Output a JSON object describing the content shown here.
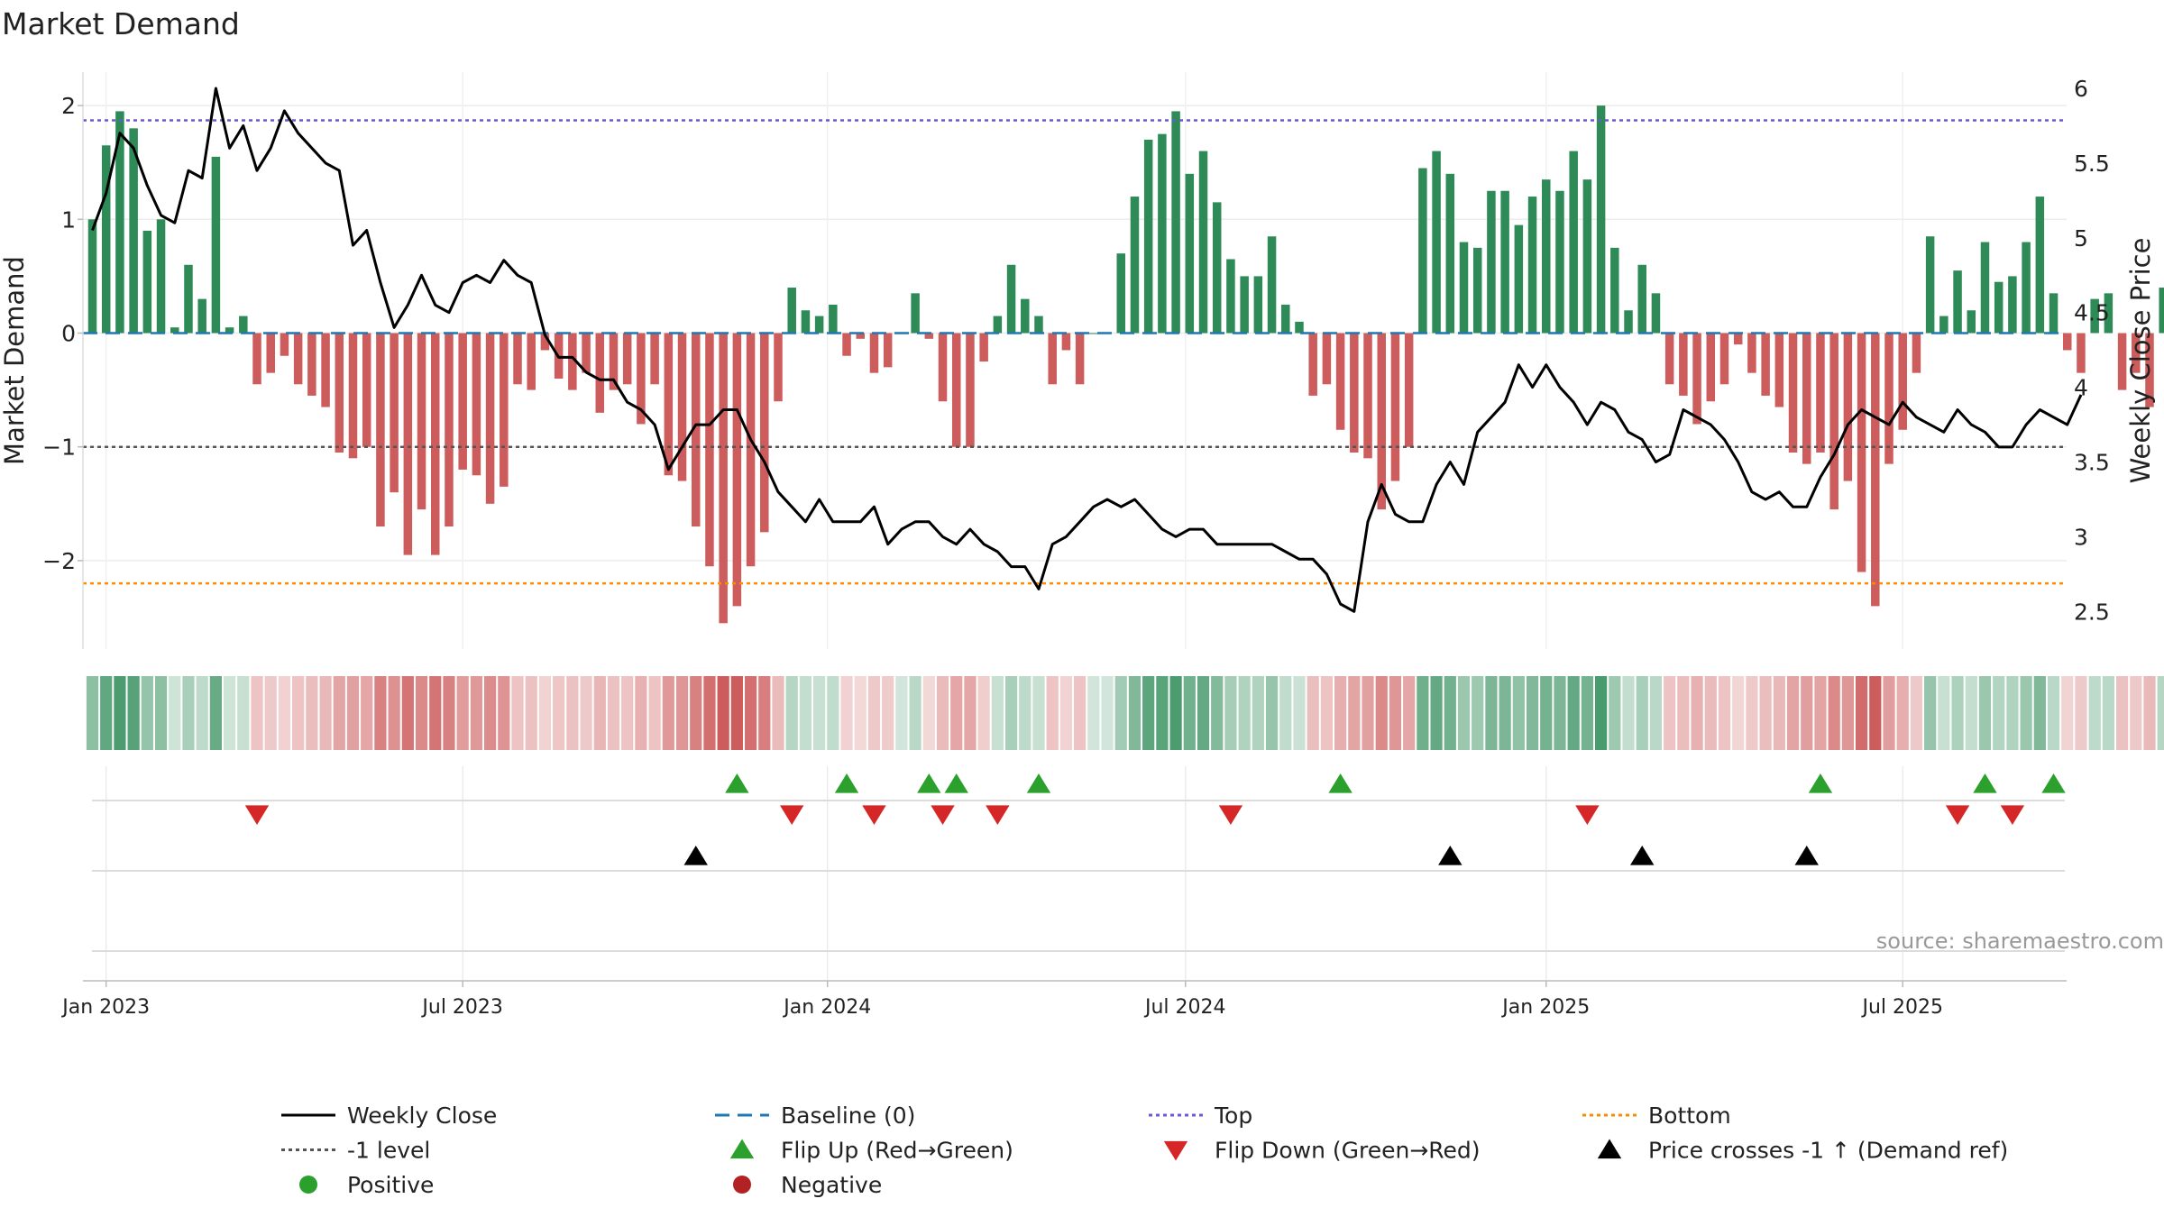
{
  "chart_data": {
    "type": "bar+line",
    "title": "Market Demand",
    "ylabel_left": "Market Demand",
    "ylabel_right": "Weekly Close Price",
    "ylim_left": [
      -2.85,
      2.1
    ],
    "ylim_right": [
      2.25,
      6.1
    ],
    "yticks_left": [
      2,
      1,
      0,
      -1,
      -2
    ],
    "yticks_left_labels": [
      "2",
      "1",
      "0",
      "−1",
      "−2"
    ],
    "yticks_right": [
      6,
      5.5,
      5,
      4.5,
      4,
      3.5,
      3,
      2.5
    ],
    "yticks_right_labels": [
      "6",
      "5.5",
      "5",
      "4.5",
      "4",
      "3.5",
      "3",
      "2.5"
    ],
    "x_start_date": "2022-12-26",
    "week_count": 146,
    "x_ticks": [
      {
        "label": "Jan 2023",
        "week": 1
      },
      {
        "label": "Jul 2023",
        "week": 27
      },
      {
        "label": "Jan 2024",
        "week": 53.6
      },
      {
        "label": "Jul 2024",
        "week": 79.7
      },
      {
        "label": "Jan 2025",
        "week": 106
      },
      {
        "label": "Jul 2025",
        "week": 132
      }
    ],
    "reference_lines": {
      "top": 1.87,
      "bottom": -2.2,
      "minus_one": -1,
      "baseline": 0
    },
    "demand": [
      1.0,
      1.65,
      1.95,
      1.8,
      0.9,
      1.0,
      0.05,
      0.6,
      0.3,
      1.55,
      0.05,
      0.15,
      -0.45,
      -0.35,
      -0.2,
      -0.45,
      -0.55,
      -0.65,
      -1.05,
      -1.1,
      -1.0,
      -1.7,
      -1.4,
      -1.95,
      -1.55,
      -1.95,
      -1.7,
      -1.2,
      -1.25,
      -1.5,
      -1.35,
      -0.45,
      -0.5,
      -0.15,
      -0.4,
      -0.5,
      -0.35,
      -0.7,
      -0.5,
      -0.45,
      -0.8,
      -0.45,
      -1.25,
      -1.3,
      -1.7,
      -2.05,
      -2.55,
      -2.4,
      -2.05,
      -1.75,
      -0.6,
      0.4,
      0.2,
      0.15,
      0.25,
      -0.2,
      -0.05,
      -0.35,
      -0.3,
      0.0,
      0.35,
      -0.05,
      -0.6,
      -1.0,
      -1.0,
      -0.25,
      0.15,
      0.6,
      0.3,
      0.15,
      -0.45,
      -0.15,
      -0.45,
      0.0,
      0.0,
      0.7,
      1.2,
      1.7,
      1.75,
      1.95,
      1.4,
      1.6,
      1.15,
      0.65,
      0.5,
      0.5,
      0.85,
      0.25,
      0.1,
      -0.55,
      -0.45,
      -0.85,
      -1.05,
      -1.1,
      -1.55,
      -1.3,
      -1.0,
      1.45,
      1.6,
      1.4,
      0.8,
      0.75,
      1.25,
      1.25,
      0.95,
      1.2,
      1.35,
      1.25,
      1.6,
      1.35,
      2.0,
      0.75,
      0.2,
      0.6,
      0.35,
      -0.45,
      -0.55,
      -0.8,
      -0.6,
      -0.45,
      -0.1,
      -0.35,
      -0.55,
      -0.65,
      -1.05,
      -1.15,
      -1.05,
      -1.55,
      -1.3,
      -2.1,
      -2.4,
      -1.15,
      -0.85,
      -0.35,
      0.85,
      0.15,
      0.55,
      0.2,
      0.8,
      0.45,
      0.5,
      0.8,
      1.2,
      0.35,
      -0.15,
      -0.35,
      0.3,
      0.35,
      -0.5,
      -0.35,
      -0.65,
      0.4
    ],
    "weekly_close": [
      5.05,
      5.3,
      5.7,
      5.6,
      5.35,
      5.15,
      5.1,
      5.45,
      5.4,
      6.0,
      5.6,
      5.75,
      5.45,
      5.6,
      5.85,
      5.7,
      5.6,
      5.5,
      5.45,
      4.95,
      5.05,
      4.7,
      4.4,
      4.55,
      4.75,
      4.55,
      4.5,
      4.7,
      4.75,
      4.7,
      4.85,
      4.75,
      4.7,
      4.35,
      4.2,
      4.2,
      4.1,
      4.05,
      4.05,
      3.9,
      3.85,
      3.75,
      3.45,
      3.6,
      3.75,
      3.75,
      3.85,
      3.85,
      3.65,
      3.5,
      3.3,
      3.2,
      3.1,
      3.25,
      3.1,
      3.1,
      3.1,
      3.2,
      2.95,
      3.05,
      3.1,
      3.1,
      3.0,
      2.95,
      3.05,
      2.95,
      2.9,
      2.8,
      2.8,
      2.65,
      2.95,
      3.0,
      3.1,
      3.2,
      3.25,
      3.2,
      3.25,
      3.15,
      3.05,
      3.0,
      3.05,
      3.05,
      2.95,
      2.95,
      2.95,
      2.95,
      2.95,
      2.9,
      2.85,
      2.85,
      2.75,
      2.55,
      2.5,
      3.1,
      3.35,
      3.15,
      3.1,
      3.1,
      3.35,
      3.5,
      3.35,
      3.7,
      3.8,
      3.9,
      4.15,
      4.0,
      4.15,
      4.0,
      3.9,
      3.75,
      3.9,
      3.85,
      3.7,
      3.65,
      3.5,
      3.55,
      3.85,
      3.8,
      3.75,
      3.65,
      3.5,
      3.3,
      3.25,
      3.3,
      3.2,
      3.2,
      3.4,
      3.55,
      3.75,
      3.85,
      3.8,
      3.75,
      3.9,
      3.8,
      3.75,
      3.7,
      3.85,
      3.75,
      3.7,
      3.6,
      3.6,
      3.75,
      3.85,
      3.8,
      3.75,
      3.95
    ],
    "flip_up_weeks": [
      47,
      55,
      61,
      63,
      69,
      91,
      126,
      138,
      143
    ],
    "flip_down_weeks": [
      12,
      51,
      57,
      62,
      66,
      83,
      109,
      136,
      140
    ],
    "price_cross_weeks": [
      44,
      99,
      113,
      125
    ],
    "colors": {
      "positive_bar": "#2e8b57",
      "negative_bar": "#cd5c5c",
      "price_line": "#000000",
      "baseline": "#1f77b4",
      "top": "#6a5acd",
      "bottom": "#ff8c00",
      "minus_one": "#555555",
      "flip_up": "#2ca02c",
      "flip_down": "#d62728",
      "price_cross": "#000000",
      "positive_dot": "#2ca02c",
      "negative_dot": "#b22222"
    },
    "source": "source: sharemaestro.com",
    "legend": [
      {
        "label": "Weekly Close",
        "kind": "line",
        "color": "#000000"
      },
      {
        "label": "Baseline (0)",
        "kind": "dash",
        "color": "#1f77b4"
      },
      {
        "label": "Top",
        "kind": "dot",
        "color": "#6a5acd"
      },
      {
        "label": "Bottom",
        "kind": "dot",
        "color": "#ff8c00"
      },
      {
        "label": "-1 level",
        "kind": "dot",
        "color": "#555555"
      },
      {
        "label": "Flip Up (Red→Green)",
        "kind": "tri-up",
        "color": "#2ca02c"
      },
      {
        "label": "Flip Down (Green→Red)",
        "kind": "tri-down",
        "color": "#d62728"
      },
      {
        "label": "Price crosses -1 ↑ (Demand ref)",
        "kind": "tri-up",
        "color": "#000000"
      },
      {
        "label": "Positive",
        "kind": "circle",
        "color": "#2ca02c"
      },
      {
        "label": "Negative",
        "kind": "circle",
        "color": "#b22222"
      }
    ],
    "legend_position": "bottom"
  }
}
